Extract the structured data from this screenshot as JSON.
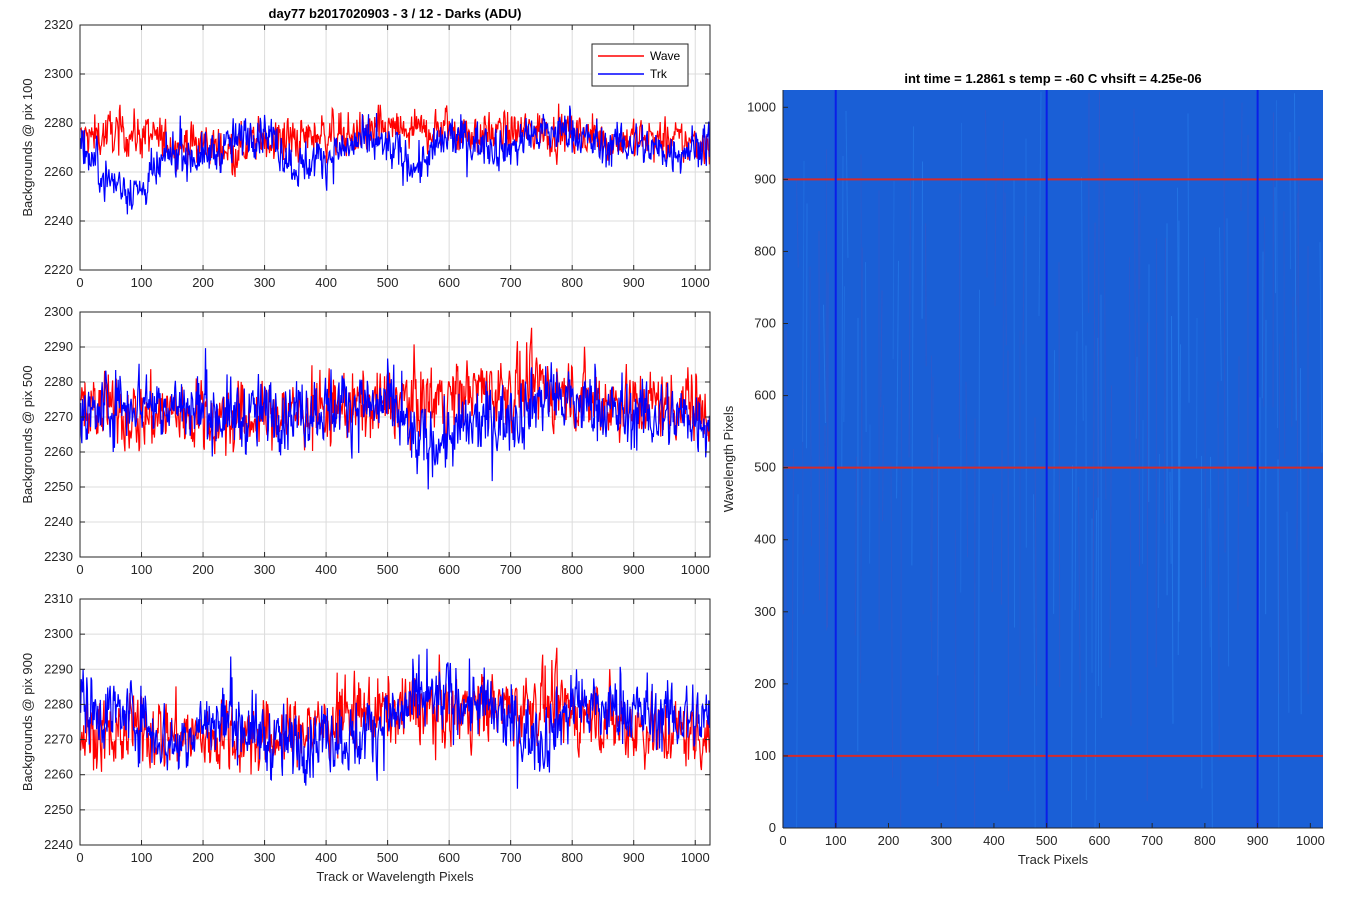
{
  "figure_title": "day77 b2017020903 - 3 / 12 - Darks (ADU)",
  "chart_data": [
    {
      "type": "line",
      "title": "day77 b2017020903 - 3 / 12 - Darks (ADU)",
      "xlabel": "",
      "ylabel": "Backgrounds @ pix 100",
      "xlim": [
        0,
        1024
      ],
      "ylim": [
        2220,
        2320
      ],
      "xticks": [
        0,
        100,
        200,
        300,
        400,
        500,
        600,
        700,
        800,
        900,
        1000
      ],
      "yticks": [
        2220,
        2240,
        2260,
        2280,
        2300,
        2320
      ],
      "grid": true,
      "legend": "top-right",
      "series": [
        {
          "name": "Wave",
          "color": "#ff0000",
          "x": [
            0,
            50,
            100,
            150,
            200,
            250,
            300,
            350,
            400,
            450,
            500,
            550,
            600,
            650,
            700,
            750,
            800,
            850,
            900,
            950,
            1024
          ],
          "values": [
            2273,
            2276,
            2275,
            2272,
            2271,
            2270,
            2274,
            2273,
            2276,
            2275,
            2277,
            2276,
            2278,
            2275,
            2276,
            2277,
            2275,
            2273,
            2274,
            2272,
            2272
          ]
        },
        {
          "name": "Trk",
          "color": "#0000ff",
          "x": [
            0,
            50,
            100,
            150,
            200,
            250,
            300,
            350,
            400,
            450,
            500,
            550,
            600,
            650,
            700,
            750,
            800,
            850,
            900,
            950,
            1024
          ],
          "values": [
            2270,
            2256,
            2252,
            2268,
            2266,
            2272,
            2278,
            2262,
            2266,
            2272,
            2270,
            2262,
            2274,
            2272,
            2270,
            2276,
            2276,
            2270,
            2272,
            2268,
            2272
          ]
        }
      ]
    },
    {
      "type": "line",
      "title": "",
      "xlabel": "",
      "ylabel": "Backgrounds @ pix 500",
      "xlim": [
        0,
        1024
      ],
      "ylim": [
        2230,
        2300
      ],
      "xticks": [
        0,
        100,
        200,
        300,
        400,
        500,
        600,
        700,
        800,
        900,
        1000
      ],
      "yticks": [
        2230,
        2240,
        2250,
        2260,
        2270,
        2280,
        2290,
        2300
      ],
      "grid": true,
      "series": [
        {
          "name": "Wave",
          "color": "#ff0000",
          "x": [
            0,
            50,
            100,
            150,
            200,
            250,
            300,
            350,
            400,
            450,
            500,
            550,
            600,
            650,
            700,
            750,
            800,
            850,
            900,
            950,
            1024
          ],
          "values": [
            2273,
            2272,
            2270,
            2271,
            2270,
            2269,
            2270,
            2272,
            2271,
            2273,
            2274,
            2275,
            2276,
            2278,
            2277,
            2279,
            2276,
            2275,
            2274,
            2274,
            2274
          ]
        },
        {
          "name": "Trk",
          "color": "#0000ff",
          "x": [
            0,
            50,
            100,
            150,
            200,
            250,
            300,
            350,
            400,
            450,
            500,
            550,
            600,
            650,
            700,
            750,
            800,
            850,
            900,
            950,
            1024
          ],
          "values": [
            2268,
            2274,
            2275,
            2273,
            2272,
            2270,
            2271,
            2272,
            2273,
            2274,
            2273,
            2262,
            2264,
            2268,
            2270,
            2276,
            2274,
            2272,
            2270,
            2270,
            2270
          ]
        }
      ]
    },
    {
      "type": "line",
      "title": "",
      "xlabel": "Track or Wavelength Pixels",
      "ylabel": "Backgrounds @ pix 900",
      "xlim": [
        0,
        1024
      ],
      "ylim": [
        2240,
        2310
      ],
      "xticks": [
        0,
        100,
        200,
        300,
        400,
        500,
        600,
        700,
        800,
        900,
        1000
      ],
      "yticks": [
        2240,
        2250,
        2260,
        2270,
        2280,
        2290,
        2300,
        2310
      ],
      "grid": true,
      "series": [
        {
          "name": "Wave",
          "color": "#ff0000",
          "x": [
            0,
            50,
            100,
            150,
            200,
            250,
            300,
            350,
            400,
            450,
            500,
            550,
            600,
            650,
            700,
            750,
            800,
            850,
            900,
            950,
            1024
          ],
          "values": [
            2272,
            2271,
            2273,
            2272,
            2270,
            2271,
            2270,
            2272,
            2275,
            2277,
            2278,
            2279,
            2278,
            2280,
            2279,
            2280,
            2278,
            2276,
            2274,
            2272,
            2272
          ]
        },
        {
          "name": "Trk",
          "color": "#0000ff",
          "x": [
            0,
            50,
            100,
            150,
            200,
            250,
            300,
            350,
            400,
            450,
            500,
            550,
            600,
            650,
            700,
            750,
            800,
            850,
            900,
            950,
            1024
          ],
          "values": [
            2280,
            2278,
            2276,
            2268,
            2274,
            2276,
            2270,
            2268,
            2272,
            2270,
            2276,
            2280,
            2282,
            2280,
            2274,
            2270,
            2280,
            2278,
            2278,
            2276,
            2276
          ]
        }
      ]
    },
    {
      "type": "heatmap",
      "title": "int time = 1.2861 s    temp = -60 C    vhsift = 4.25e-06",
      "xlabel": "Track Pixels",
      "ylabel": "Wavelength Pixels",
      "xlim": [
        0,
        1024
      ],
      "ylim": [
        0,
        1024
      ],
      "xticks": [
        0,
        100,
        200,
        300,
        400,
        500,
        600,
        700,
        800,
        900,
        1000
      ],
      "yticks": [
        0,
        100,
        200,
        300,
        400,
        500,
        600,
        700,
        800,
        900,
        1000
      ],
      "fill_color": "#1a5fd6",
      "marker_rows": [
        100,
        500,
        900
      ],
      "marker_row_color": "#d42a2a",
      "marker_cols": [
        100,
        500,
        900
      ],
      "marker_col_color": "#0a1ee8"
    }
  ]
}
